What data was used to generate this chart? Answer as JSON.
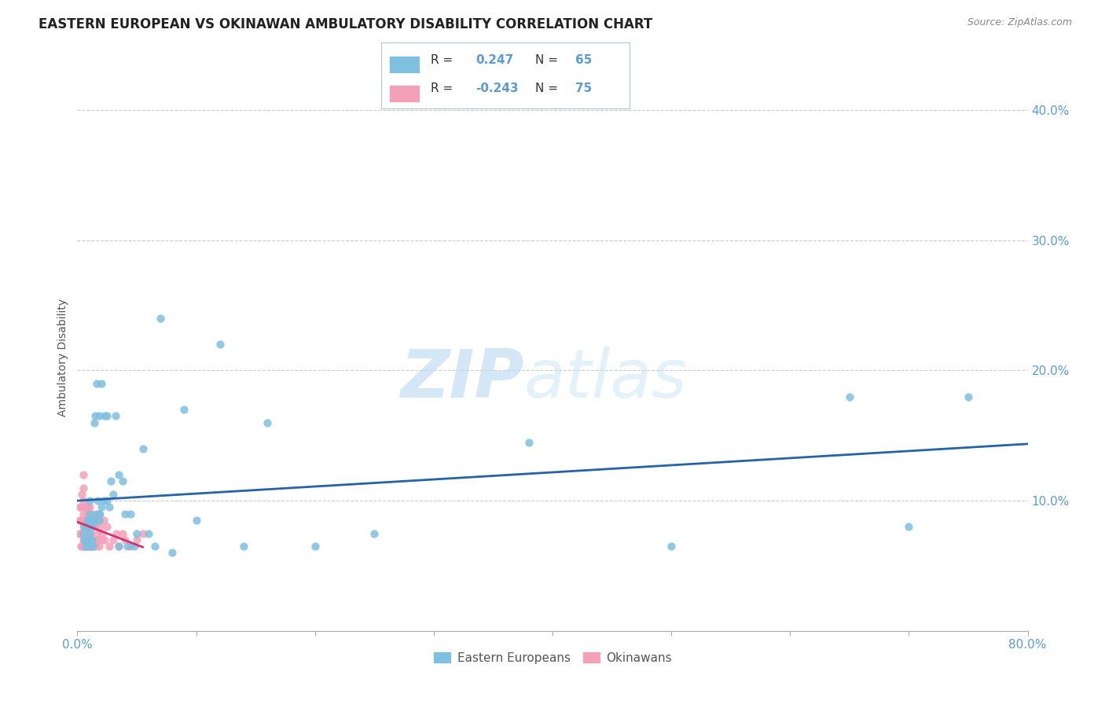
{
  "title": "EASTERN EUROPEAN VS OKINAWAN AMBULATORY DISABILITY CORRELATION CHART",
  "source": "Source: ZipAtlas.com",
  "ylabel": "Ambulatory Disability",
  "xlim": [
    0,
    0.8
  ],
  "ylim": [
    0,
    0.42
  ],
  "x_ticks": [
    0.0,
    0.1,
    0.2,
    0.3,
    0.4,
    0.5,
    0.6,
    0.7,
    0.8
  ],
  "y_ticks": [
    0.0,
    0.1,
    0.2,
    0.3,
    0.4
  ],
  "grid_color": "#cccccc",
  "background_color": "#ffffff",
  "blue_color": "#7fbfdf",
  "pink_color": "#f4a0b8",
  "trendline_blue_color": "#2563a8",
  "trendline_pink_color": "#d43070",
  "watermark_zip": "ZIP",
  "watermark_atlas": "atlas",
  "eastern_european_x": [
    0.005,
    0.006,
    0.006,
    0.007,
    0.007,
    0.008,
    0.008,
    0.009,
    0.009,
    0.01,
    0.01,
    0.01,
    0.01,
    0.01,
    0.01,
    0.011,
    0.011,
    0.012,
    0.012,
    0.013,
    0.013,
    0.014,
    0.015,
    0.015,
    0.016,
    0.016,
    0.017,
    0.018,
    0.018,
    0.019,
    0.02,
    0.02,
    0.022,
    0.023,
    0.025,
    0.025,
    0.027,
    0.028,
    0.03,
    0.032,
    0.035,
    0.035,
    0.038,
    0.04,
    0.042,
    0.045,
    0.048,
    0.05,
    0.055,
    0.06,
    0.065,
    0.07,
    0.08,
    0.09,
    0.1,
    0.12,
    0.14,
    0.16,
    0.2,
    0.25,
    0.38,
    0.5,
    0.65,
    0.7,
    0.75
  ],
  "eastern_european_y": [
    0.075,
    0.07,
    0.08,
    0.065,
    0.08,
    0.07,
    0.085,
    0.065,
    0.08,
    0.065,
    0.075,
    0.08,
    0.085,
    0.09,
    0.1,
    0.065,
    0.08,
    0.07,
    0.085,
    0.065,
    0.08,
    0.16,
    0.085,
    0.165,
    0.09,
    0.19,
    0.1,
    0.085,
    0.165,
    0.09,
    0.095,
    0.19,
    0.1,
    0.165,
    0.1,
    0.165,
    0.095,
    0.115,
    0.105,
    0.165,
    0.065,
    0.12,
    0.115,
    0.09,
    0.065,
    0.09,
    0.065,
    0.075,
    0.14,
    0.075,
    0.065,
    0.24,
    0.06,
    0.17,
    0.085,
    0.22,
    0.065,
    0.16,
    0.065,
    0.075,
    0.145,
    0.065,
    0.18,
    0.08,
    0.18
  ],
  "okinawan_x": [
    0.002,
    0.002,
    0.002,
    0.003,
    0.003,
    0.003,
    0.003,
    0.004,
    0.004,
    0.004,
    0.004,
    0.004,
    0.005,
    0.005,
    0.005,
    0.005,
    0.005,
    0.005,
    0.005,
    0.005,
    0.005,
    0.006,
    0.006,
    0.006,
    0.006,
    0.007,
    0.007,
    0.007,
    0.007,
    0.008,
    0.008,
    0.008,
    0.009,
    0.009,
    0.009,
    0.009,
    0.01,
    0.01,
    0.01,
    0.01,
    0.01,
    0.01,
    0.01,
    0.011,
    0.011,
    0.011,
    0.012,
    0.012,
    0.012,
    0.013,
    0.013,
    0.014,
    0.014,
    0.015,
    0.015,
    0.016,
    0.016,
    0.017,
    0.018,
    0.018,
    0.019,
    0.02,
    0.021,
    0.022,
    0.023,
    0.025,
    0.027,
    0.03,
    0.033,
    0.035,
    0.038,
    0.04,
    0.045,
    0.05,
    0.055
  ],
  "okinawan_y": [
    0.075,
    0.085,
    0.095,
    0.065,
    0.075,
    0.085,
    0.095,
    0.065,
    0.075,
    0.085,
    0.095,
    0.105,
    0.065,
    0.07,
    0.075,
    0.08,
    0.085,
    0.09,
    0.1,
    0.11,
    0.12,
    0.065,
    0.075,
    0.085,
    0.095,
    0.065,
    0.075,
    0.085,
    0.095,
    0.065,
    0.075,
    0.09,
    0.065,
    0.075,
    0.085,
    0.095,
    0.065,
    0.07,
    0.075,
    0.08,
    0.085,
    0.09,
    0.095,
    0.065,
    0.075,
    0.085,
    0.07,
    0.08,
    0.09,
    0.065,
    0.08,
    0.07,
    0.085,
    0.065,
    0.08,
    0.07,
    0.085,
    0.075,
    0.065,
    0.09,
    0.08,
    0.07,
    0.075,
    0.085,
    0.07,
    0.08,
    0.065,
    0.07,
    0.075,
    0.065,
    0.075,
    0.07,
    0.065,
    0.07,
    0.075
  ]
}
